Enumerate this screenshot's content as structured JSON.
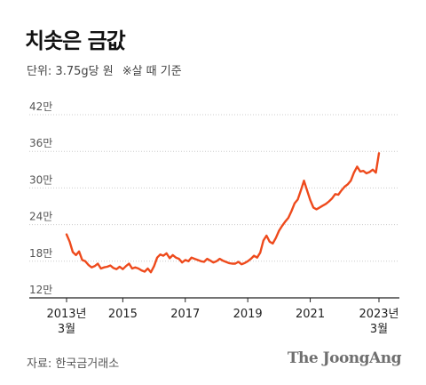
{
  "header": {
    "title": "치솟은 금값",
    "unit_note": "단위: 3.75g당 원",
    "basis_note": "※살 때 기준"
  },
  "footer": {
    "source": "자료: 한국금거래소",
    "brand": "The JoongAng"
  },
  "colors": {
    "line": "#ee4a1c",
    "axis": "#222222",
    "grid": "#cccccc",
    "tick_label": "#555555"
  },
  "chart_data": {
    "type": "line",
    "y_tick_labels": [
      "12만",
      "18만",
      "24만",
      "30만",
      "36만",
      "42만"
    ],
    "y_ticks": [
      120000,
      180000,
      240000,
      300000,
      360000,
      420000
    ],
    "ylim": [
      120000,
      420000
    ],
    "x_tick_labels": [
      {
        "label": "2013년",
        "sublabel": "3월",
        "x": 2013.2
      },
      {
        "label": "2015",
        "sublabel": "",
        "x": 2015
      },
      {
        "label": "2017",
        "sublabel": "",
        "x": 2017
      },
      {
        "label": "2019",
        "sublabel": "",
        "x": 2019
      },
      {
        "label": "2021",
        "sublabel": "",
        "x": 2021
      },
      {
        "label": "2023년",
        "sublabel": "3월",
        "x": 2023.2
      }
    ],
    "xlim": [
      2013.0,
      2023.35
    ],
    "grid": true,
    "series": [
      {
        "x": [
          2013.2,
          2013.3,
          2013.4,
          2013.5,
          2013.6,
          2013.7,
          2013.8,
          2013.9,
          2014.0,
          2014.1,
          2014.2,
          2014.3,
          2014.4,
          2014.5,
          2014.6,
          2014.7,
          2014.8,
          2014.9,
          2015.0,
          2015.1,
          2015.2,
          2015.3,
          2015.4,
          2015.5,
          2015.6,
          2015.7,
          2015.8,
          2015.9,
          2016.0,
          2016.1,
          2016.2,
          2016.3,
          2016.4,
          2016.5,
          2016.6,
          2016.7,
          2016.8,
          2016.9,
          2017.0,
          2017.1,
          2017.2,
          2017.3,
          2017.4,
          2017.5,
          2017.6,
          2017.7,
          2017.8,
          2017.9,
          2018.0,
          2018.1,
          2018.2,
          2018.3,
          2018.4,
          2018.5,
          2018.6,
          2018.7,
          2018.8,
          2018.9,
          2019.0,
          2019.1,
          2019.2,
          2019.3,
          2019.4,
          2019.5,
          2019.6,
          2019.7,
          2019.8,
          2019.9,
          2020.0,
          2020.1,
          2020.2,
          2020.3,
          2020.4,
          2020.5,
          2020.6,
          2020.7,
          2020.8,
          2020.9,
          2021.0,
          2021.1,
          2021.2,
          2021.3,
          2021.4,
          2021.5,
          2021.6,
          2021.7,
          2021.8,
          2021.9,
          2022.0,
          2022.1,
          2022.2,
          2022.3,
          2022.4,
          2022.5,
          2022.6,
          2022.7,
          2022.8,
          2022.9,
          2023.0,
          2023.1,
          2023.2
        ],
        "values": [
          224000,
          212000,
          195000,
          190000,
          196000,
          182000,
          180000,
          174000,
          170000,
          172000,
          176000,
          168000,
          170000,
          171000,
          173000,
          169000,
          167000,
          171000,
          167000,
          172000,
          176000,
          168000,
          170000,
          168000,
          165000,
          163000,
          168000,
          162000,
          172000,
          186000,
          191000,
          189000,
          193000,
          185000,
          190000,
          186000,
          184000,
          178000,
          182000,
          180000,
          186000,
          184000,
          182000,
          180000,
          179000,
          184000,
          181000,
          178000,
          180000,
          184000,
          181000,
          179000,
          177000,
          176000,
          176000,
          179000,
          175000,
          177000,
          180000,
          184000,
          189000,
          186000,
          194000,
          214000,
          222000,
          212000,
          209000,
          218000,
          230000,
          238000,
          245000,
          251000,
          262000,
          275000,
          281000,
          296000,
          312000,
          296000,
          280000,
          268000,
          265000,
          268000,
          271000,
          274000,
          278000,
          283000,
          290000,
          289000,
          296000,
          302000,
          306000,
          312000,
          325000,
          335000,
          327000,
          328000,
          324000,
          326000,
          330000,
          325000,
          357000
        ]
      }
    ]
  }
}
